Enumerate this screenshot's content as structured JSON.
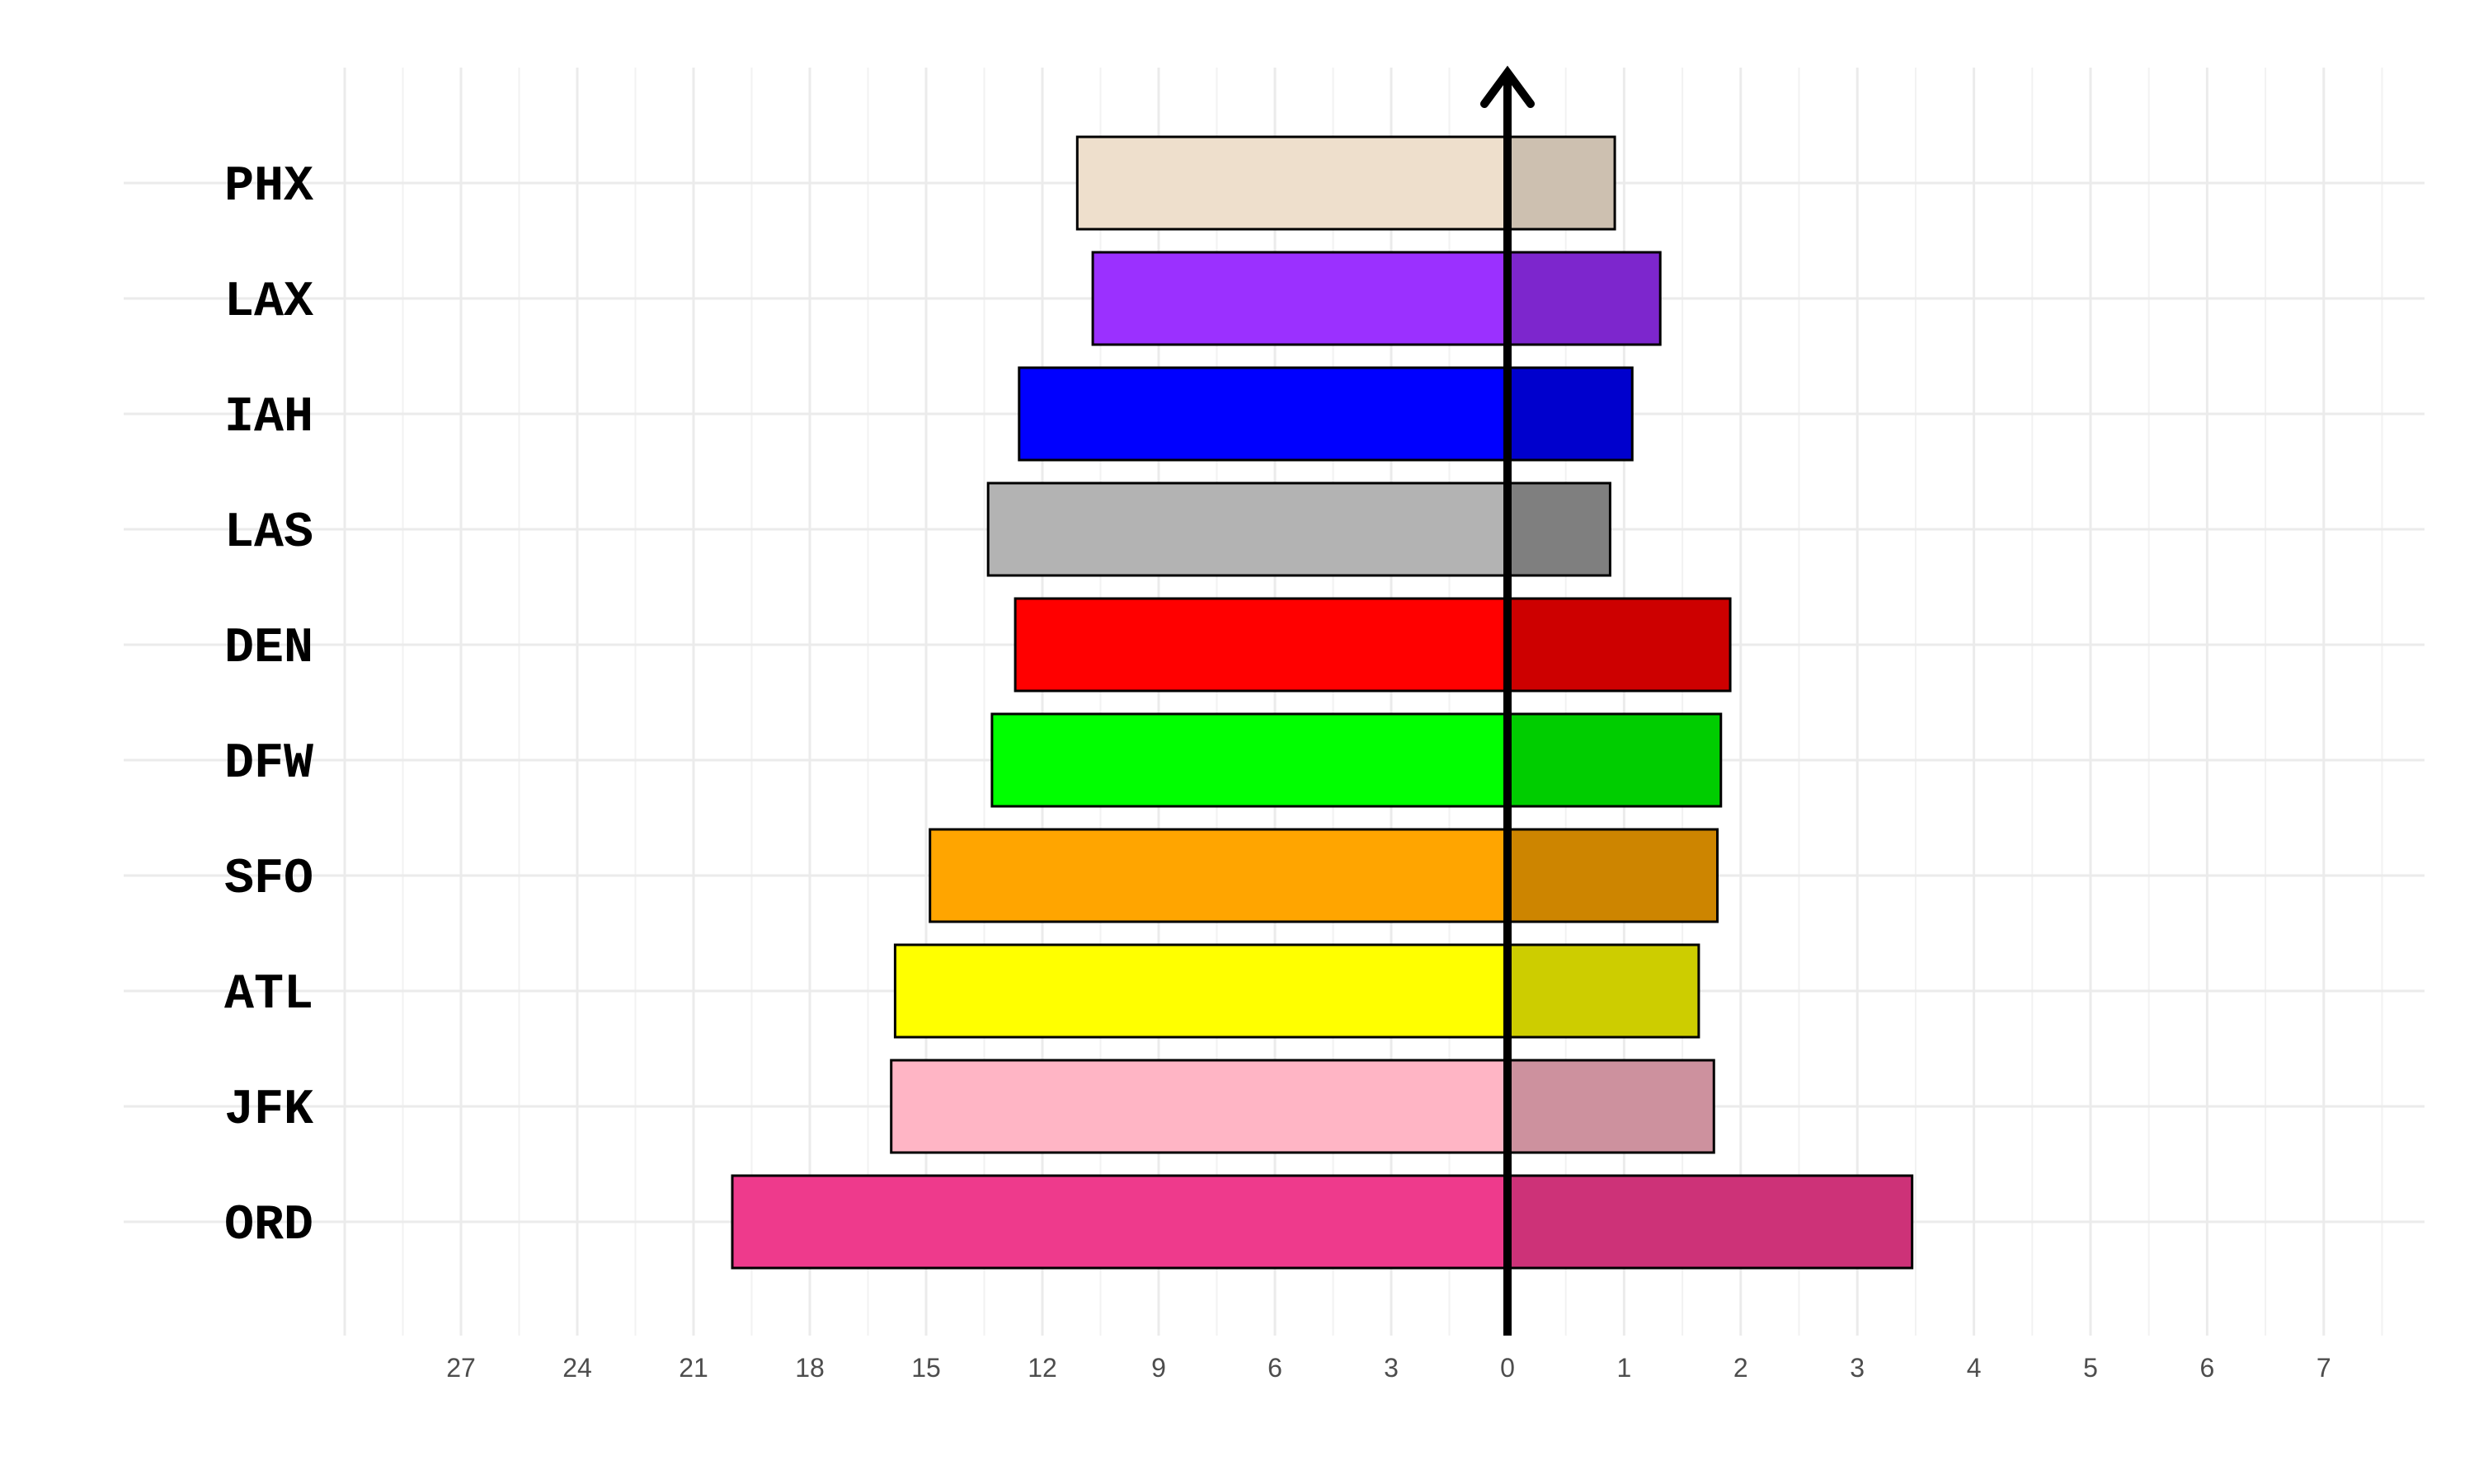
{
  "chart_data": {
    "type": "bar",
    "orientation": "horizontal",
    "layout": "diverging",
    "title": "",
    "xlabel": "",
    "ylabel": "",
    "grid": true,
    "legend": "none",
    "categories": [
      "PHX",
      "LAX",
      "IAH",
      "LAS",
      "DEN",
      "DFW",
      "SFO",
      "ATL",
      "JFK",
      "ORD"
    ],
    "left": {
      "xlim": [
        0,
        30
      ],
      "ticks": [
        "27",
        "24",
        "21",
        "18",
        "15",
        "12",
        "9",
        "6",
        "3",
        "0"
      ],
      "values": [
        11.1,
        10.7,
        12.6,
        13.4,
        12.7,
        13.3,
        14.9,
        15.8,
        15.9,
        20.0
      ],
      "colors": [
        "#EEDFCC",
        "#9B30FF",
        "#0000FF",
        "#B3B3B3",
        "#FF0000",
        "#00FF00",
        "#FFA500",
        "#FFFF00",
        "#FFB5C5",
        "#EE3A8C"
      ]
    },
    "right": {
      "xlim": [
        0,
        7.4
      ],
      "ticks": [
        "1",
        "2",
        "3",
        "4",
        "5",
        "6",
        "7"
      ],
      "values": [
        0.92,
        1.31,
        1.07,
        0.88,
        1.91,
        1.83,
        1.8,
        1.64,
        1.77,
        3.47
      ],
      "colors": [
        "#CDC0B0",
        "#7D26CD",
        "#0000CD",
        "#7F7F7F",
        "#CD0000",
        "#00CD00",
        "#CD8500",
        "#CDCD00",
        "#CD919E",
        "#CD3278"
      ]
    }
  }
}
